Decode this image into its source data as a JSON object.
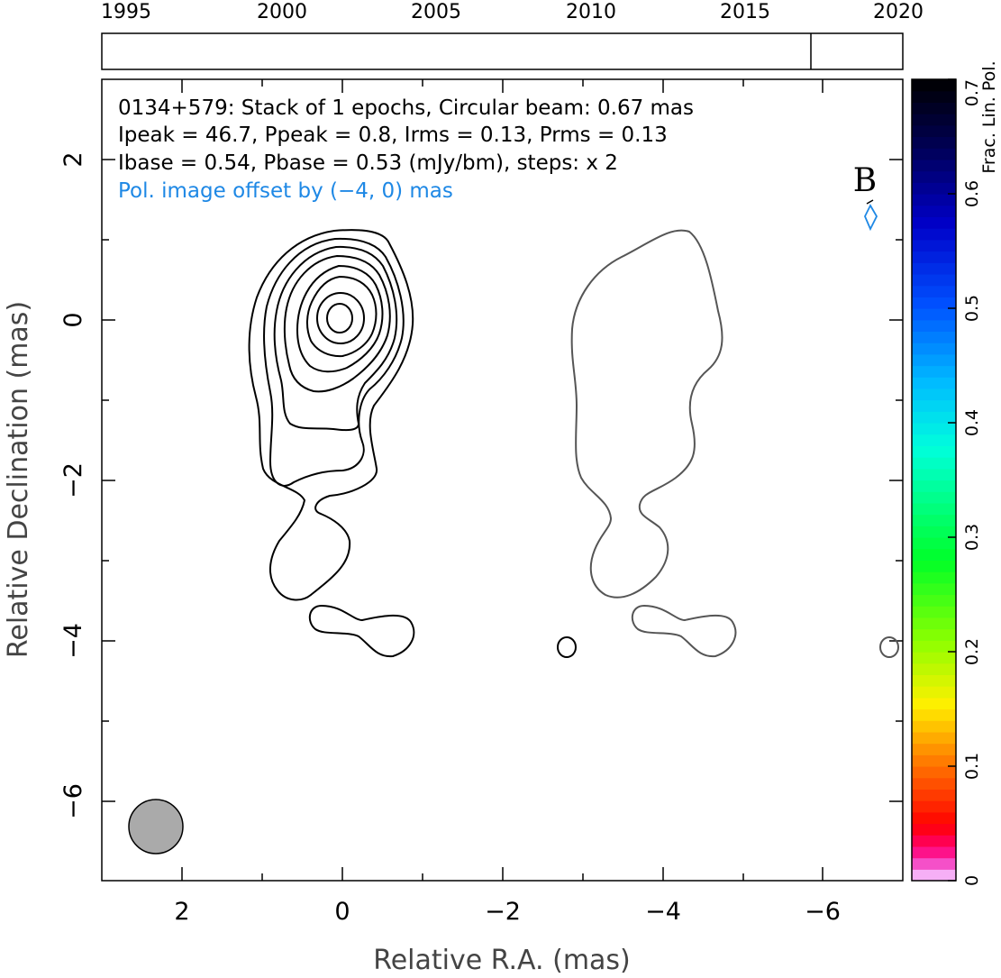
{
  "timeline": {
    "years": [
      "1995",
      "2000",
      "2005",
      "2010",
      "2015",
      "2020"
    ],
    "epoch_year": 2017.0
  },
  "info": {
    "line1": "0134+579: Stack of 1 epochs, Circular beam: 0.67 mas",
    "line2": "Ipeak = 46.7, Ppeak = 0.8, Irms = 0.13, Prms = 0.13",
    "line3": "Ibase = 0.54, Pbase = 0.53 (mJy/bm), steps: x 2",
    "line4": "Pol. image offset by (−4, 0) mas"
  },
  "band_label": "B",
  "axes": {
    "xlabel": "Relative R.A. (mas)",
    "ylabel": "Relative Declination (mas)",
    "xticks": [
      "2",
      "0",
      "−2",
      "−4",
      "−6"
    ],
    "yticks": [
      "2",
      "0",
      "−2",
      "−4",
      "−6"
    ],
    "xlim": [
      3.0,
      -7.0
    ],
    "ylim": [
      -7.0,
      3.0
    ]
  },
  "colorbar": {
    "label": "Frac. Lin. Pol.",
    "ticks": [
      "0",
      "0.1",
      "0.2",
      "0.3",
      "0.4",
      "0.5",
      "0.6",
      "0.7"
    ],
    "range": [
      0,
      0.7
    ]
  },
  "colors": {
    "intensity_contour": "#000000",
    "polarization_contour": "#555555",
    "info_blue": "#1e88e5",
    "beam_fill": "#aaaaaa"
  }
}
